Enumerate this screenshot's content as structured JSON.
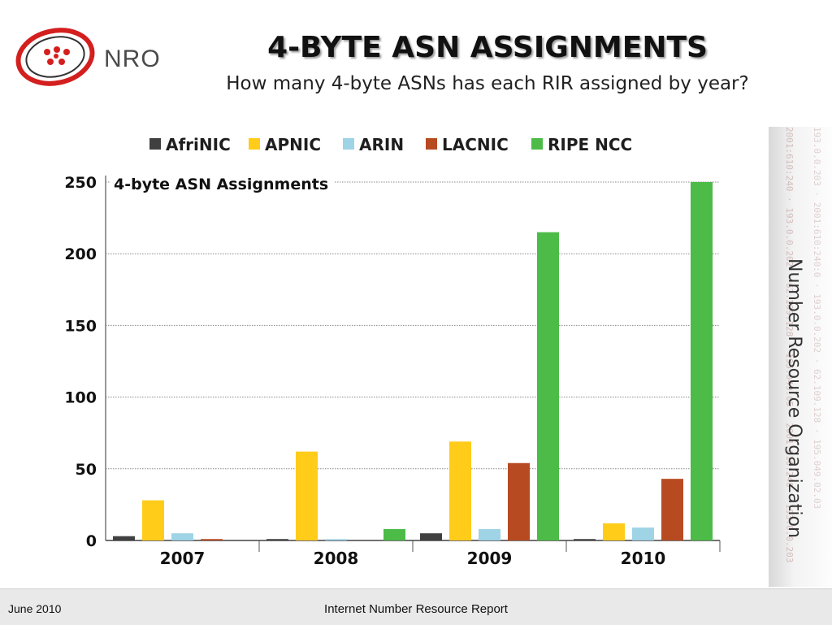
{
  "header": {
    "brand": "NRO",
    "title": "4-BYTE ASN ASSIGNMENTS",
    "subtitle": "How many 4-byte ASNs has each RIR assigned by year?"
  },
  "side": {
    "org_name": "Number Resource Organization"
  },
  "footer": {
    "date": "June 2010",
    "report": "Internet Number Resource Report"
  },
  "colors": {
    "AfriNIC": "#404040",
    "APNIC": "#ffcc1a",
    "ARIN": "#9fd3e6",
    "LACNIC": "#b84a22",
    "RIPE NCC": "#4cbb47"
  },
  "chart_data": {
    "type": "bar",
    "title": "4-byte ASN Assignments",
    "categories": [
      "2007",
      "2008",
      "2009",
      "2010"
    ],
    "series": [
      {
        "name": "AfriNIC",
        "values": [
          3,
          1,
          5,
          1
        ]
      },
      {
        "name": "APNIC",
        "values": [
          28,
          62,
          69,
          12
        ]
      },
      {
        "name": "ARIN",
        "values": [
          5,
          1,
          8,
          9
        ]
      },
      {
        "name": "LACNIC",
        "values": [
          1,
          0,
          54,
          43
        ]
      },
      {
        "name": "RIPE NCC",
        "values": [
          0,
          8,
          215,
          250
        ]
      }
    ],
    "ylim": [
      0,
      250
    ],
    "yticks": [
      0,
      50,
      100,
      150,
      200,
      250
    ],
    "xlabel": "",
    "ylabel": "",
    "grid": true,
    "legend_position": "top"
  }
}
